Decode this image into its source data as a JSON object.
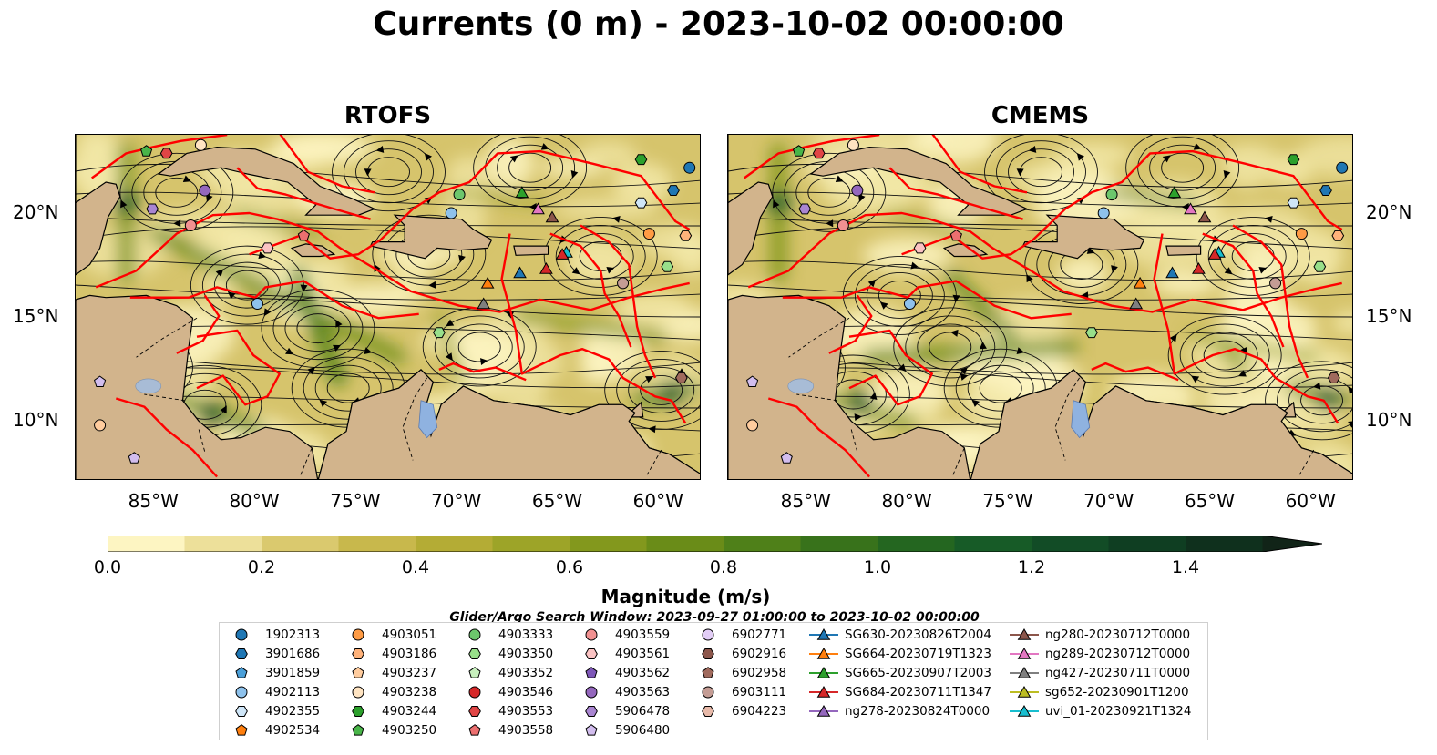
{
  "title": "Currents (0 m) - 2023-10-02 00:00:00",
  "panels": [
    {
      "title": "RTOFS"
    },
    {
      "title": "CMEMS"
    }
  ],
  "axes": {
    "lon_labels": [
      "85°W",
      "80°W",
      "75°W",
      "70°W",
      "65°W",
      "60°W"
    ],
    "lat_labels": [
      "20°N",
      "15°N",
      "10°N"
    ]
  },
  "colorbar": {
    "label": "Magnitude (m/s)",
    "ticks": [
      "0.0",
      "0.2",
      "0.4",
      "0.6",
      "0.8",
      "1.0",
      "1.2",
      "1.4"
    ],
    "colors": [
      "#fdf5c2",
      "#ede09a",
      "#dac96e",
      "#c8b84c",
      "#b4ac35",
      "#9da428",
      "#83981d",
      "#6a8c18",
      "#4f8019",
      "#38721b",
      "#246620",
      "#175b27",
      "#124c26",
      "#0f3e22",
      "#0f301d",
      "#112418"
    ],
    "extend": "max"
  },
  "search_window": "Glider/Argo Search Window: 2023-09-27 01:00:00 to 2023-10-02 00:00:00",
  "legend": [
    [
      {
        "label": "1902313",
        "marker": "circle",
        "color": "#1f77b4"
      },
      {
        "label": "3901686",
        "marker": "hexagon",
        "color": "#1f77b4"
      },
      {
        "label": "3901859",
        "marker": "pentagon",
        "color": "#4a9fd8"
      },
      {
        "label": "4902113",
        "marker": "circle",
        "color": "#8ec2ec"
      },
      {
        "label": "4902355",
        "marker": "hexagon",
        "color": "#cfe6f8"
      },
      {
        "label": "4902534",
        "marker": "pentagon",
        "color": "#ff7f0e"
      }
    ],
    [
      {
        "label": "4903051",
        "marker": "circle",
        "color": "#ff9b44"
      },
      {
        "label": "4903186",
        "marker": "hexagon",
        "color": "#ffb27a"
      },
      {
        "label": "4903237",
        "marker": "pentagon",
        "color": "#ffcc9e"
      },
      {
        "label": "4903238",
        "marker": "circle",
        "color": "#ffe4c2"
      },
      {
        "label": "4903244",
        "marker": "hexagon",
        "color": "#2ca02c"
      },
      {
        "label": "4903250",
        "marker": "pentagon",
        "color": "#49b549"
      }
    ],
    [
      {
        "label": "4903333",
        "marker": "circle",
        "color": "#6cc66c"
      },
      {
        "label": "4903350",
        "marker": "hexagon",
        "color": "#98df8a"
      },
      {
        "label": "4903352",
        "marker": "pentagon",
        "color": "#c7f0bd"
      },
      {
        "label": "4903546",
        "marker": "circle",
        "color": "#d62728"
      },
      {
        "label": "4903553",
        "marker": "hexagon",
        "color": "#e04545"
      },
      {
        "label": "4903558",
        "marker": "pentagon",
        "color": "#ec6f6f"
      }
    ],
    [
      {
        "label": "4903559",
        "marker": "circle",
        "color": "#f29191"
      },
      {
        "label": "4903561",
        "marker": "hexagon",
        "color": "#fbc3c3"
      },
      {
        "label": "4903562",
        "marker": "pentagon",
        "color": "#7e57b8"
      },
      {
        "label": "4903563",
        "marker": "circle",
        "color": "#9467bd"
      },
      {
        "label": "5906478",
        "marker": "hexagon",
        "color": "#a985d1"
      },
      {
        "label": "5906480",
        "marker": "pentagon",
        "color": "#d2bdee"
      }
    ],
    [
      {
        "label": "6902771",
        "marker": "circle",
        "color": "#e2cdf6"
      },
      {
        "label": "6902916",
        "marker": "hexagon",
        "color": "#8c564b"
      },
      {
        "label": "6902958",
        "marker": "pentagon",
        "color": "#a06a5d"
      },
      {
        "label": "6903111",
        "marker": "circle",
        "color": "#c49c94"
      },
      {
        "label": "6904223",
        "marker": "hexagon",
        "color": "#e7b9a9"
      }
    ],
    [
      {
        "label": "SG630-20230826T2004",
        "marker": "triangle",
        "color": "#1f77b4"
      },
      {
        "label": "SG664-20230719T1323",
        "marker": "triangle",
        "color": "#ff7f0e"
      },
      {
        "label": "SG665-20230907T2003",
        "marker": "triangle",
        "color": "#2ca02c"
      },
      {
        "label": "SG684-20230711T1347",
        "marker": "triangle",
        "color": "#d62728"
      },
      {
        "label": "ng278-20230824T0000",
        "marker": "triangle",
        "color": "#9467bd"
      }
    ],
    [
      {
        "label": "ng280-20230712T0000",
        "marker": "triangle",
        "color": "#8c564b"
      },
      {
        "label": "ng289-20230712T0000",
        "marker": "triangle",
        "color": "#e377c2"
      },
      {
        "label": "ng427-20230711T0000",
        "marker": "triangle",
        "color": "#7f7f7f"
      },
      {
        "label": "sg652-20230901T1200",
        "marker": "triangle",
        "color": "#bcbd22"
      },
      {
        "label": "uvi_01-20230921T1324",
        "marker": "triangle",
        "color": "#17becf"
      }
    ]
  ],
  "map_markers": [
    {
      "lon": -85.5,
      "lat": 23.0,
      "marker": "pentagon",
      "color": "#49b549"
    },
    {
      "lon": -84.5,
      "lat": 22.9,
      "marker": "hexagon",
      "color": "#e04545"
    },
    {
      "lon": -82.8,
      "lat": 23.3,
      "marker": "circle",
      "color": "#ffe4c2"
    },
    {
      "lon": -82.6,
      "lat": 21.1,
      "marker": "circle",
      "color": "#9467bd"
    },
    {
      "lon": -85.2,
      "lat": 20.2,
      "marker": "hexagon",
      "color": "#a985d1"
    },
    {
      "lon": -83.3,
      "lat": 19.4,
      "marker": "circle",
      "color": "#f29191"
    },
    {
      "lon": -79.5,
      "lat": 18.3,
      "marker": "hexagon",
      "color": "#fbc3c3"
    },
    {
      "lon": -77.7,
      "lat": 18.9,
      "marker": "pentagon",
      "color": "#ec6f6f"
    },
    {
      "lon": -80.0,
      "lat": 15.6,
      "marker": "circle",
      "color": "#8ec2ec"
    },
    {
      "lon": -70.0,
      "lat": 20.9,
      "marker": "circle",
      "color": "#6cc66c"
    },
    {
      "lon": -70.4,
      "lat": 20.0,
      "marker": "circle",
      "color": "#8ec2ec"
    },
    {
      "lon": -71.0,
      "lat": 14.2,
      "marker": "hexagon",
      "color": "#98df8a"
    },
    {
      "lon": -61.0,
      "lat": 22.6,
      "marker": "hexagon",
      "color": "#2ca02c"
    },
    {
      "lon": -61.0,
      "lat": 20.5,
      "marker": "hexagon",
      "color": "#cfe6f8"
    },
    {
      "lon": -58.6,
      "lat": 22.2,
      "marker": "circle",
      "color": "#1f77b4"
    },
    {
      "lon": -59.4,
      "lat": 21.1,
      "marker": "hexagon",
      "color": "#1f77b4"
    },
    {
      "lon": -60.6,
      "lat": 19.0,
      "marker": "circle",
      "color": "#ff9b44"
    },
    {
      "lon": -58.8,
      "lat": 18.9,
      "marker": "hexagon",
      "color": "#ffb27a"
    },
    {
      "lon": -59.7,
      "lat": 17.4,
      "marker": "hexagon",
      "color": "#98df8a"
    },
    {
      "lon": -61.9,
      "lat": 16.6,
      "marker": "circle",
      "color": "#c49c94"
    },
    {
      "lon": -59.0,
      "lat": 12.0,
      "marker": "hexagon",
      "color": "#a06a5d"
    },
    {
      "lon": -87.8,
      "lat": 11.8,
      "marker": "pentagon",
      "color": "#d2bdee"
    },
    {
      "lon": -87.8,
      "lat": 9.7,
      "marker": "circle",
      "color": "#ffcc9e"
    },
    {
      "lon": -86.1,
      "lat": 8.1,
      "marker": "pentagon",
      "color": "#d2bdee"
    },
    {
      "lon": -66.9,
      "lat": 21.0,
      "marker": "triangle",
      "color": "#2ca02c"
    },
    {
      "lon": -66.1,
      "lat": 20.2,
      "marker": "triangle",
      "color": "#e377c2"
    },
    {
      "lon": -65.4,
      "lat": 19.8,
      "marker": "triangle",
      "color": "#8c564b"
    },
    {
      "lon": -64.7,
      "lat": 18.1,
      "marker": "triangle",
      "color": "#17becf"
    },
    {
      "lon": -64.9,
      "lat": 18.0,
      "marker": "triangle",
      "color": "#d62728"
    },
    {
      "lon": -67.0,
      "lat": 17.1,
      "marker": "triangle",
      "color": "#1f77b4"
    },
    {
      "lon": -65.7,
      "lat": 17.3,
      "marker": "triangle",
      "color": "#d62728"
    },
    {
      "lon": -68.6,
      "lat": 16.6,
      "marker": "triangle",
      "color": "#ff7f0e"
    },
    {
      "lon": -68.8,
      "lat": 15.6,
      "marker": "triangle",
      "color": "#7f7f7f"
    }
  ]
}
